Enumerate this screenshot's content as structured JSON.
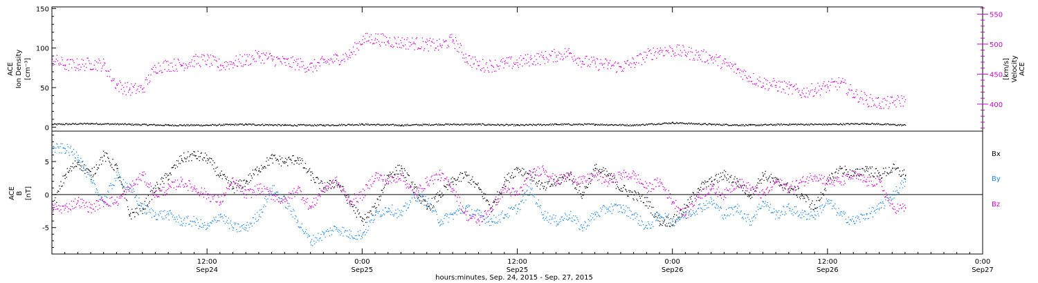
{
  "colors": {
    "axis": "#000000",
    "density": "#000000",
    "velocity": "#cc00cc",
    "bx": "#000000",
    "by": "#1e88e5",
    "bz": "#cc00cc"
  },
  "x_axis": {
    "range_hours": [
      0,
      72
    ],
    "ticks": [
      {
        "line1": "12:00",
        "line2": "Sep24"
      },
      {
        "line1": "0:00",
        "line2": "Sep25"
      },
      {
        "line1": "12:00",
        "line2": "Sep25"
      },
      {
        "line1": "0:00",
        "line2": "Sep26"
      },
      {
        "line1": "12:00",
        "line2": "Sep26"
      },
      {
        "line1": "0:00",
        "line2": "Sep27"
      }
    ],
    "label": "hours:minutes, Sep. 24, 2015 - Sep. 27, 2015"
  },
  "chart_data": [
    {
      "type": "scatter",
      "panel": "top",
      "ylabel_left": [
        "ACE",
        "Ion Density",
        "[cm⁻³]"
      ],
      "ylabel_right": [
        "ACE",
        "Velocity",
        "[km/s]"
      ],
      "y_left_ticks": [
        "0",
        "50",
        "100",
        "150"
      ],
      "y_left_range": [
        -5,
        152
      ],
      "y_right_ticks": [
        "400",
        "450",
        "500",
        "550"
      ],
      "y_right_range": [
        355,
        562
      ],
      "series": [
        {
          "axis": "left",
          "x_hours": [
            0,
            3,
            6,
            9,
            12,
            15,
            18,
            21,
            24,
            27,
            30,
            33,
            36,
            39,
            42,
            45,
            48,
            51,
            54,
            57,
            60,
            63,
            66
          ],
          "values": [
            4,
            5,
            4,
            3,
            3,
            4,
            3,
            3,
            4,
            3,
            4,
            4,
            3,
            4,
            4,
            3,
            6,
            4,
            3,
            4,
            4,
            5,
            3
          ]
        },
        {
          "axis": "right",
          "x_hours": [
            0,
            1,
            2,
            3,
            4,
            5,
            6,
            7,
            8,
            9,
            10,
            11,
            12,
            13,
            14,
            15,
            16,
            17,
            18,
            19,
            20,
            21,
            22,
            23,
            24,
            25,
            26,
            27,
            28,
            29,
            30,
            31,
            32,
            33,
            34,
            35,
            36,
            37,
            38,
            39,
            40,
            41,
            42,
            43,
            44,
            45,
            46,
            47,
            48,
            49,
            50,
            51,
            52,
            53,
            54,
            55,
            56,
            57,
            58,
            59,
            60,
            61,
            62,
            63,
            64,
            65,
            66
          ],
          "values": [
            475,
            466,
            466,
            468,
            466,
            432,
            425,
            426,
            462,
            466,
            466,
            473,
            474,
            465,
            470,
            474,
            481,
            476,
            470,
            468,
            462,
            470,
            476,
            482,
            508,
            510,
            506,
            503,
            502,
            500,
            498,
            508,
            478,
            465,
            465,
            468,
            470,
            475,
            478,
            482,
            486,
            472,
            468,
            466,
            462,
            470,
            482,
            490,
            490,
            487,
            482,
            478,
            468,
            458,
            445,
            436,
            432,
            427,
            420,
            425,
            430,
            436,
            418,
            408,
            402,
            403,
            408
          ]
        }
      ]
    },
    {
      "type": "scatter",
      "panel": "bottom",
      "ylabel_left": [
        "ACE",
        "B",
        "[nT]"
      ],
      "y_ticks": [
        "-5",
        "0",
        "5"
      ],
      "y_range": [
        -9,
        9.6
      ],
      "series": [
        {
          "name": "Bx",
          "x_hours": [
            0,
            1,
            2,
            3,
            4,
            5,
            6,
            7,
            8,
            9,
            10,
            11,
            12,
            13,
            14,
            15,
            16,
            17,
            18,
            19,
            20,
            21,
            22,
            23,
            24,
            25,
            26,
            27,
            28,
            29,
            30,
            31,
            32,
            33,
            34,
            35,
            36,
            37,
            38,
            39,
            40,
            41,
            42,
            43,
            44,
            45,
            46,
            47,
            48,
            49,
            50,
            51,
            52,
            53,
            54,
            55,
            56,
            57,
            58,
            59,
            60,
            61,
            62,
            63,
            64,
            65,
            66
          ],
          "values": [
            -2,
            3,
            5,
            3,
            6,
            4,
            -3,
            -2,
            1,
            3,
            5.5,
            6,
            5.5,
            3,
            1,
            2,
            4,
            5.5,
            5,
            5.5,
            3,
            1,
            2,
            -1,
            -4,
            -2,
            3,
            4,
            1,
            -2,
            0,
            2,
            3,
            1,
            -2,
            2,
            4,
            3,
            1,
            2,
            3,
            0,
            4,
            3,
            1,
            0,
            -1,
            -4,
            -4,
            -2,
            1,
            2,
            3,
            2,
            0,
            3,
            2,
            1,
            0,
            -2,
            2,
            4,
            3,
            4,
            3,
            4,
            3
          ]
        },
        {
          "name": "By",
          "x_hours": [
            0,
            1,
            2,
            3,
            4,
            5,
            6,
            7,
            8,
            9,
            10,
            11,
            12,
            13,
            14,
            15,
            16,
            17,
            18,
            19,
            20,
            21,
            22,
            23,
            24,
            25,
            26,
            27,
            28,
            29,
            30,
            31,
            32,
            33,
            34,
            35,
            36,
            37,
            38,
            39,
            40,
            41,
            42,
            43,
            44,
            45,
            46,
            47,
            48,
            49,
            50,
            51,
            52,
            53,
            54,
            55,
            56,
            57,
            58,
            59,
            60,
            61,
            62,
            63,
            64,
            65,
            66
          ],
          "values": [
            7,
            7,
            6,
            2,
            -1,
            3,
            1,
            -2,
            -3,
            -3,
            -4,
            -4,
            -5,
            -3,
            -5,
            -5,
            -3,
            1,
            -1,
            -4,
            -7,
            -6,
            -5,
            -6,
            -6,
            -3,
            -2,
            -3,
            0,
            -1,
            -4,
            -3,
            -2,
            -3,
            -4,
            -3,
            -2,
            1,
            -3,
            -4,
            -3,
            -5,
            -3,
            -2,
            -2,
            -3,
            -5,
            -3,
            -4,
            -3,
            -2,
            -1,
            -3,
            -2,
            -4,
            -1,
            -3,
            -2,
            -3,
            -3,
            -1,
            -3,
            -4,
            -3,
            -2,
            0,
            2
          ]
        },
        {
          "name": "Bz",
          "x_hours": [
            0,
            1,
            2,
            3,
            4,
            5,
            6,
            7,
            8,
            9,
            10,
            11,
            12,
            13,
            14,
            15,
            16,
            17,
            18,
            19,
            20,
            21,
            22,
            23,
            24,
            25,
            26,
            27,
            28,
            29,
            30,
            31,
            32,
            33,
            34,
            35,
            36,
            37,
            38,
            39,
            40,
            41,
            42,
            43,
            44,
            45,
            46,
            47,
            48,
            49,
            50,
            51,
            52,
            53,
            54,
            55,
            56,
            57,
            58,
            59,
            60,
            61,
            62,
            63,
            64,
            65,
            66
          ],
          "values": [
            -2,
            -2,
            -1,
            -2,
            -1,
            -1,
            1,
            3,
            0,
            1,
            2,
            1,
            0,
            -1,
            2,
            0,
            1,
            0,
            -1,
            1,
            -2,
            1,
            2,
            -1,
            0,
            3,
            2,
            3,
            0,
            2,
            3,
            1,
            -3,
            -4,
            -2,
            1,
            0,
            3,
            4,
            2,
            3,
            2,
            3,
            2,
            3,
            3,
            1,
            2,
            -1,
            -3,
            0,
            1,
            0,
            2,
            1,
            0,
            2,
            1,
            2,
            3,
            2,
            2,
            3,
            2,
            2,
            -2,
            -2
          ]
        }
      ],
      "legend": [
        "Bx",
        "By",
        "Bz"
      ]
    }
  ]
}
